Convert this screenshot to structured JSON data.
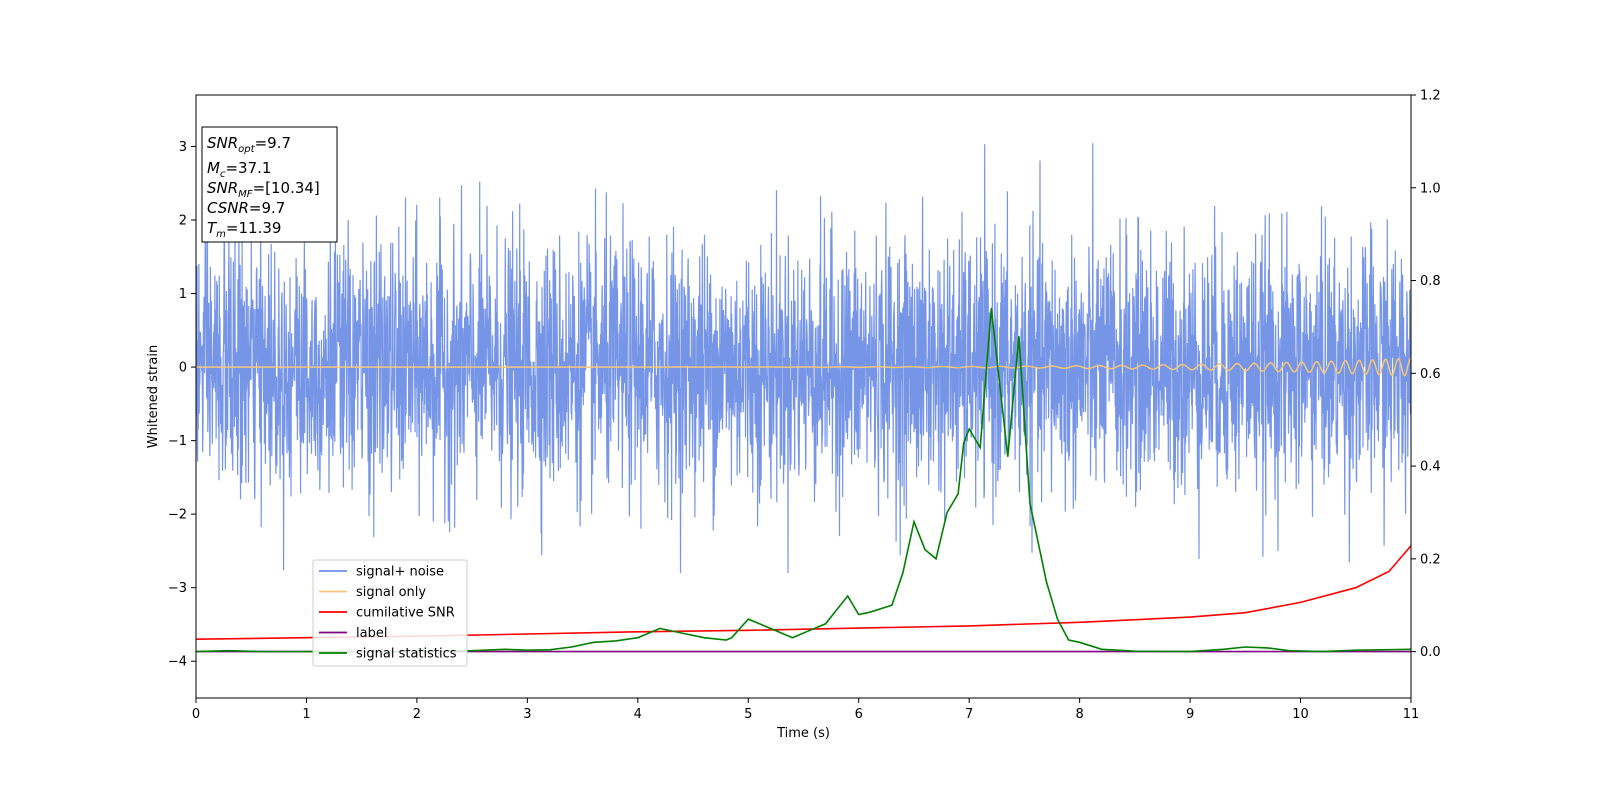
{
  "chart_data": {
    "type": "line",
    "xlabel": "Time (s)",
    "ylabel": "Whitened strain",
    "xlim": [
      0,
      11
    ],
    "ylim": [
      -4.5,
      3.7
    ],
    "y2lim": [
      -0.1,
      1.2
    ],
    "x_ticks": [
      0,
      1,
      2,
      3,
      4,
      5,
      6,
      7,
      8,
      9,
      10,
      11
    ],
    "y_ticks": [
      -4,
      -3,
      -2,
      -1,
      0,
      1,
      2,
      3
    ],
    "y2_ticks": [
      0.0,
      0.2,
      0.4,
      0.6,
      0.8,
      1.0,
      1.2
    ],
    "grid": false,
    "legend_position": "lower-left",
    "annotation": {
      "snr_opt": {
        "base": "SNR",
        "sub": "opt",
        "value": "=9.7"
      },
      "mc": {
        "base": "M",
        "sub": "c",
        "value": "=37.1"
      },
      "snr_mf": {
        "base": "SNR",
        "sub": "MF",
        "value": "=[10.34]"
      },
      "csnr": {
        "base": "CSNR",
        "value": "=9.7"
      },
      "tm": {
        "base": "T",
        "sub": "m",
        "value": "=11.39"
      }
    },
    "series": [
      {
        "name": "signal+ noise",
        "color": "#6f8fe6",
        "axis": "left",
        "noise_std": 0.85,
        "noise_max_peak": 3.3,
        "noise_min_peak": -2.8
      },
      {
        "name": "signal only",
        "color": "#f5c57a",
        "axis": "left",
        "amplitude_start": 0.0,
        "amplitude_end": 0.12,
        "frequency_start_hz": 2.0,
        "frequency_end_hz": 9.0
      },
      {
        "name": "cumilative SNR",
        "color": "#ff0000",
        "axis": "left",
        "x": [
          0,
          1,
          2,
          3,
          4,
          5,
          6,
          7,
          8,
          9,
          9.5,
          10,
          10.5,
          10.8,
          11
        ],
        "y": [
          -3.7,
          -3.68,
          -3.66,
          -3.63,
          -3.6,
          -3.58,
          -3.55,
          -3.52,
          -3.47,
          -3.4,
          -3.34,
          -3.2,
          -3.0,
          -2.78,
          -2.43
        ]
      },
      {
        "name": "label",
        "color": "#800080",
        "axis": "right",
        "x": [
          0,
          11
        ],
        "y": [
          0.0,
          0.0
        ]
      },
      {
        "name": "signal statistics",
        "color": "#008000",
        "axis": "right",
        "x": [
          0,
          0.3,
          0.6,
          1.0,
          1.5,
          2.0,
          2.5,
          2.8,
          3.0,
          3.2,
          3.4,
          3.6,
          3.8,
          4.0,
          4.2,
          4.4,
          4.6,
          4.8,
          4.85,
          5.0,
          5.2,
          5.4,
          5.55,
          5.7,
          5.8,
          5.9,
          6.0,
          6.1,
          6.3,
          6.4,
          6.5,
          6.6,
          6.7,
          6.8,
          6.9,
          6.95,
          7.0,
          7.1,
          7.2,
          7.35,
          7.45,
          7.55,
          7.7,
          7.8,
          7.9,
          8.0,
          8.2,
          8.5,
          9.0,
          9.3,
          9.5,
          9.7,
          9.9,
          10.2,
          10.5,
          11.0
        ],
        "y": [
          0.0,
          0.002,
          0.0,
          0.0,
          0.0,
          0.001,
          0.002,
          0.005,
          0.003,
          0.004,
          0.01,
          0.02,
          0.023,
          0.03,
          0.05,
          0.04,
          0.03,
          0.025,
          0.03,
          0.07,
          0.05,
          0.03,
          0.045,
          0.06,
          0.09,
          0.12,
          0.08,
          0.085,
          0.1,
          0.17,
          0.28,
          0.22,
          0.2,
          0.3,
          0.34,
          0.45,
          0.48,
          0.44,
          0.74,
          0.42,
          0.68,
          0.32,
          0.15,
          0.07,
          0.025,
          0.02,
          0.005,
          0.001,
          0.0,
          0.005,
          0.01,
          0.008,
          0.002,
          0.0,
          0.003,
          0.005
        ]
      }
    ]
  }
}
